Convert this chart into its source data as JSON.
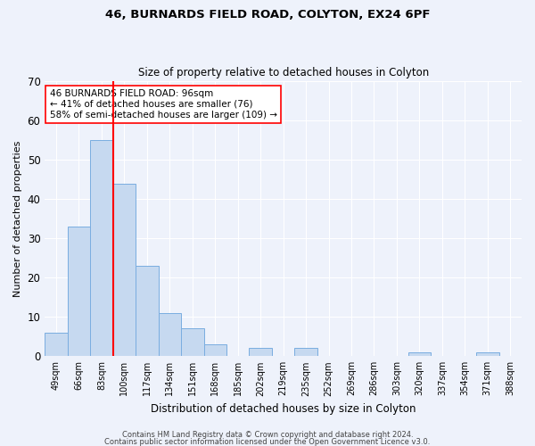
{
  "title1": "46, BURNARDS FIELD ROAD, COLYTON, EX24 6PF",
  "title2": "Size of property relative to detached houses in Colyton",
  "xlabel": "Distribution of detached houses by size in Colyton",
  "ylabel": "Number of detached properties",
  "categories": [
    "49sqm",
    "66sqm",
    "83sqm",
    "100sqm",
    "117sqm",
    "134sqm",
    "151sqm",
    "168sqm",
    "185sqm",
    "202sqm",
    "219sqm",
    "235sqm",
    "252sqm",
    "269sqm",
    "286sqm",
    "303sqm",
    "320sqm",
    "337sqm",
    "354sqm",
    "371sqm",
    "388sqm"
  ],
  "values": [
    6,
    33,
    55,
    44,
    23,
    11,
    7,
    3,
    0,
    2,
    0,
    2,
    0,
    0,
    0,
    0,
    1,
    0,
    0,
    1,
    0
  ],
  "bar_color": "#c6d9f0",
  "bar_edge_color": "#7aade0",
  "vline_color": "red",
  "vline_pos": 2.5,
  "ylim": [
    0,
    70
  ],
  "yticks": [
    0,
    10,
    20,
    30,
    40,
    50,
    60,
    70
  ],
  "annotation_text": "46 BURNARDS FIELD ROAD: 96sqm\n← 41% of detached houses are smaller (76)\n58% of semi-detached houses are larger (109) →",
  "annotation_box_color": "white",
  "annotation_box_edge": "red",
  "footer1": "Contains HM Land Registry data © Crown copyright and database right 2024.",
  "footer2": "Contains public sector information licensed under the Open Government Licence v3.0.",
  "bg_color": "#eef2fb",
  "plot_bg_color": "#eef2fb",
  "grid_color": "white"
}
